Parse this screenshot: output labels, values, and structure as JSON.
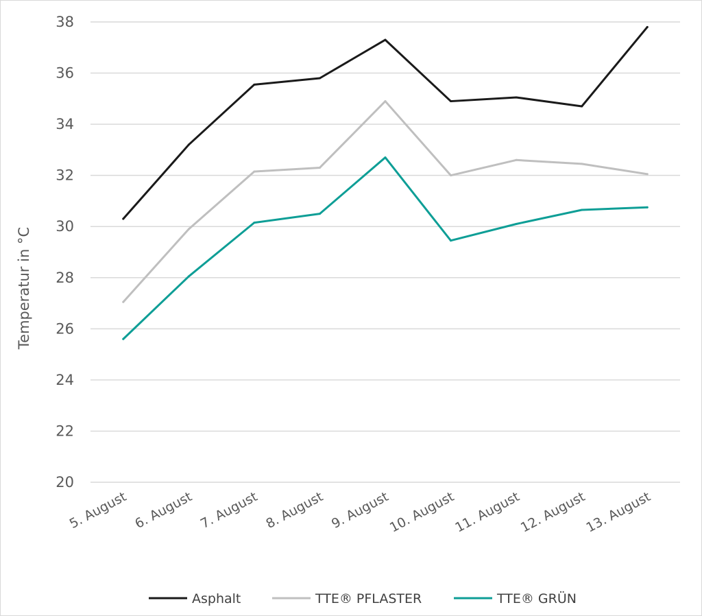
{
  "chart_data": {
    "type": "line",
    "ylabel": "Temperatur in °C",
    "xlabel": "",
    "ylim": [
      20,
      38
    ],
    "yticks": [
      20,
      22,
      24,
      26,
      28,
      30,
      32,
      34,
      36,
      38
    ],
    "grid": true,
    "legend_position": "bottom",
    "categories": [
      "5. August",
      "6. August",
      "7. August",
      "8. August",
      "9. August",
      "10. August",
      "11. August",
      "12. August",
      "13. August"
    ],
    "series": [
      {
        "name": "Asphalt",
        "color": "#1a1a1a",
        "values": [
          30.3,
          33.2,
          35.55,
          35.8,
          37.3,
          34.9,
          35.05,
          34.7,
          37.8
        ]
      },
      {
        "name": "TTE® PFLASTER",
        "color": "#bfbfbf",
        "values": [
          27.05,
          29.9,
          32.15,
          32.3,
          34.9,
          32.0,
          32.6,
          32.45,
          32.05
        ]
      },
      {
        "name": "TTE® GRÜN",
        "color": "#0e9e96",
        "values": [
          25.6,
          28.05,
          30.15,
          30.5,
          32.7,
          29.45,
          30.1,
          30.65,
          30.75
        ]
      }
    ]
  }
}
